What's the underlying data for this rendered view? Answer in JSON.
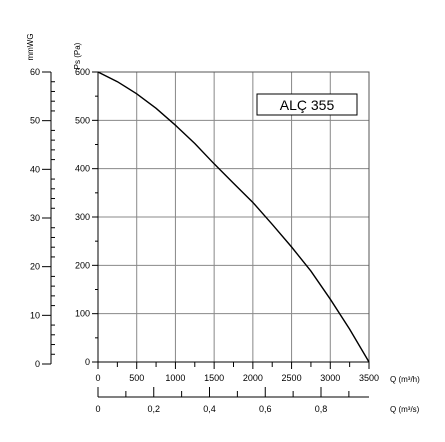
{
  "chart_data": {
    "type": "line",
    "series": [
      {
        "name": "ALÇ 355",
        "x": [
          0,
          250,
          500,
          750,
          1000,
          1250,
          1500,
          1750,
          2000,
          2250,
          2500,
          2750,
          3000,
          3250,
          3500
        ],
        "y": [
          600,
          580,
          555,
          525,
          490,
          452,
          410,
          370,
          330,
          285,
          238,
          188,
          130,
          68,
          0
        ]
      }
    ],
    "x_axis": {
      "label": "Q (m³/h)",
      "range": [
        0,
        3500
      ],
      "ticks": [
        "0",
        "500",
        "1000",
        "1500",
        "2000",
        "2500",
        "3000",
        "3500"
      ]
    },
    "x2_axis": {
      "label": "Q (m³/s)",
      "range": [
        0,
        0.9722
      ],
      "ticks": [
        "0",
        "0,2",
        "0,4",
        "0,6",
        "0,8"
      ],
      "tick_values": [
        0,
        0.2,
        0.4,
        0.6,
        0.8
      ]
    },
    "y_axis": {
      "label": "Ps (Pa)",
      "range": [
        0,
        600
      ],
      "ticks": [
        "0",
        "100",
        "200",
        "300",
        "400",
        "500",
        "600"
      ]
    },
    "y2_axis": {
      "label": "mmWG",
      "range": [
        0,
        61.2
      ],
      "ticks": [
        "0",
        "10",
        "20",
        "30",
        "40",
        "50",
        "60"
      ],
      "tick_values": [
        0,
        10,
        20,
        30,
        40,
        50,
        60
      ]
    },
    "legend": {
      "text": "ALÇ 355",
      "placement": "top-right"
    },
    "grid": true
  }
}
